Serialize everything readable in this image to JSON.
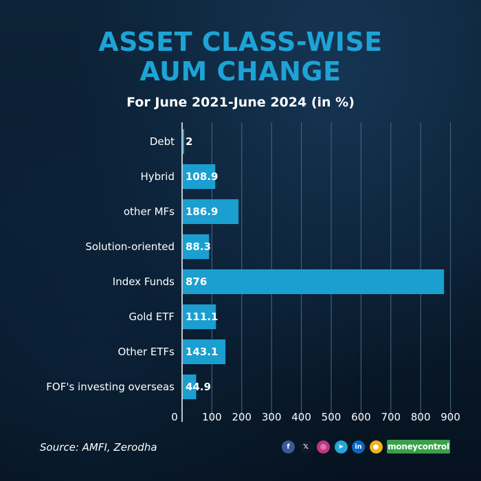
{
  "header": {
    "title_line1": "ASSET CLASS-WISE",
    "title_line2": "AUM CHANGE",
    "subtitle": "For June 2021-June 2024 (in %)"
  },
  "chart_data": {
    "type": "bar",
    "orientation": "horizontal",
    "title": "ASSET CLASS-WISE AUM CHANGE",
    "subtitle": "For June 2021-June 2024 (in %)",
    "categories": [
      "Debt",
      "Hybrid",
      "other MFs",
      "Solution-oriented",
      "Index Funds",
      "Gold ETF",
      "Other ETFs",
      "FOF's investing overseas"
    ],
    "values": [
      2,
      108.9,
      186.9,
      88.3,
      876,
      111.1,
      143.1,
      44.9
    ],
    "value_labels": [
      "2",
      "108.9",
      "186.9",
      "88.3",
      "876",
      "111.1",
      "143.1",
      "44.9"
    ],
    "xlim": [
      0,
      900
    ],
    "xticks": [
      0,
      100,
      200,
      300,
      400,
      500,
      600,
      700,
      800,
      900
    ],
    "xlabel": "",
    "ylabel": "",
    "grid": true,
    "bar_color": "#1a9fd0",
    "grid_color": "#4a6a85"
  },
  "footer": {
    "source": "Source: AMFI, Zerodha",
    "brand": "moneycontrol",
    "social_icons": [
      {
        "name": "facebook-icon",
        "glyph": "f",
        "color": "#3b5998"
      },
      {
        "name": "x-icon",
        "glyph": "𝕏",
        "color": "#0d1b29"
      },
      {
        "name": "instagram-icon",
        "glyph": "◎",
        "color": "#c13584"
      },
      {
        "name": "telegram-icon",
        "glyph": "➤",
        "color": "#2aa3d8"
      },
      {
        "name": "linkedin-icon",
        "glyph": "in",
        "color": "#0a66c2"
      },
      {
        "name": "koo-icon",
        "glyph": "●",
        "color": "#f2b21a"
      }
    ]
  }
}
